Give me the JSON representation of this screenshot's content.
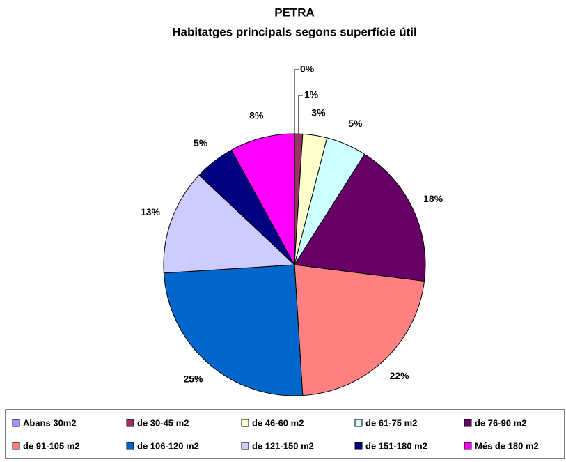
{
  "chart_data": {
    "type": "pie",
    "title": "PETRA",
    "subtitle": "Habitatges principals segons superfície útil",
    "categories": [
      "Abans 30m2",
      "de 30-45 m2",
      "de 46-60 m2",
      "de 61-75 m2",
      "de 76-90 m2",
      "de 91-105 m2",
      "de 106-120 m2",
      "de 121-150 m2",
      "de 151-180 m2",
      "Més de 180 m2"
    ],
    "values": [
      0,
      1,
      3,
      5,
      18,
      22,
      25,
      13,
      5,
      8
    ],
    "value_labels": [
      "0%",
      "1%",
      "3%",
      "5%",
      "18%",
      "22%",
      "25%",
      "13%",
      "5%",
      "8%"
    ],
    "colors": [
      "#9999ff",
      "#993366",
      "#ffffcc",
      "#ccffff",
      "#660066",
      "#ff8080",
      "#0066cc",
      "#ccccff",
      "#000080",
      "#ff00ff"
    ],
    "legend": "bottom"
  }
}
